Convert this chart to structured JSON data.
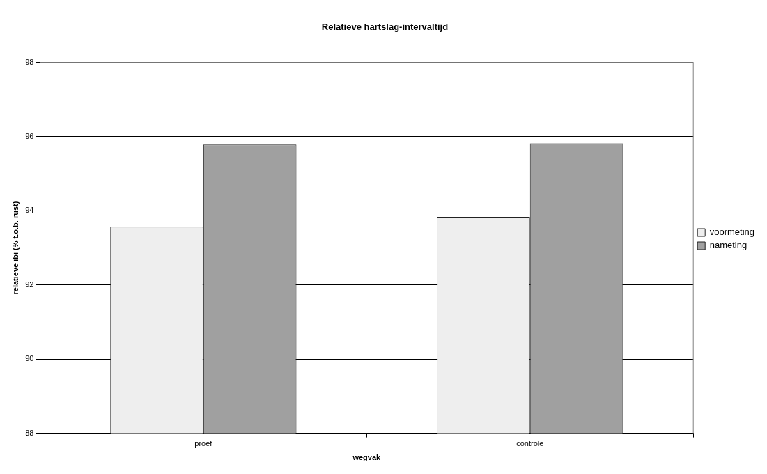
{
  "chart_data": {
    "type": "bar",
    "title": "Relatieve hartslag-intervaltijd",
    "xlabel": "wegvak",
    "ylabel": "relatieve ibi (% t.o.b. rust)",
    "categories": [
      "proef",
      "controle"
    ],
    "series": [
      {
        "name": "voormeting",
        "color": "#eeeeee",
        "values": [
          93.57,
          93.82
        ]
      },
      {
        "name": "nameting",
        "color": "#a0a0a0",
        "values": [
          95.79,
          95.82
        ]
      }
    ],
    "ylim": [
      88,
      98
    ],
    "yticks": [
      88,
      90,
      92,
      94,
      96,
      98
    ],
    "grid": "y",
    "legend": "right"
  }
}
